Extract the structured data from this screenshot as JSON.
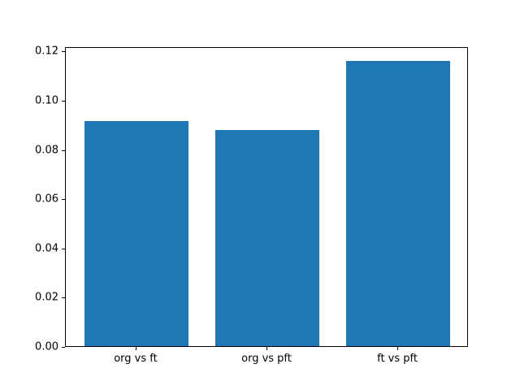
{
  "figure": {
    "background": "#ffffff",
    "title": ""
  },
  "chart_data": {
    "type": "bar",
    "categories": [
      "org vs ft",
      "org vs pft",
      "ft vs pft"
    ],
    "values": [
      0.0915,
      0.0878,
      0.116
    ],
    "title": "",
    "xlabel": "",
    "ylabel": "",
    "ylim": [
      0,
      0.1218
    ],
    "yticks": [
      0.0,
      0.02,
      0.04,
      0.06,
      0.08,
      0.1,
      0.12
    ],
    "ytick_labels": [
      "0.00",
      "0.02",
      "0.04",
      "0.06",
      "0.08",
      "0.10",
      "0.12"
    ],
    "bar_color": "#1f77b4",
    "axis_color": "#000000",
    "grid": false,
    "legend": null,
    "bar_width_fraction": 0.8
  }
}
